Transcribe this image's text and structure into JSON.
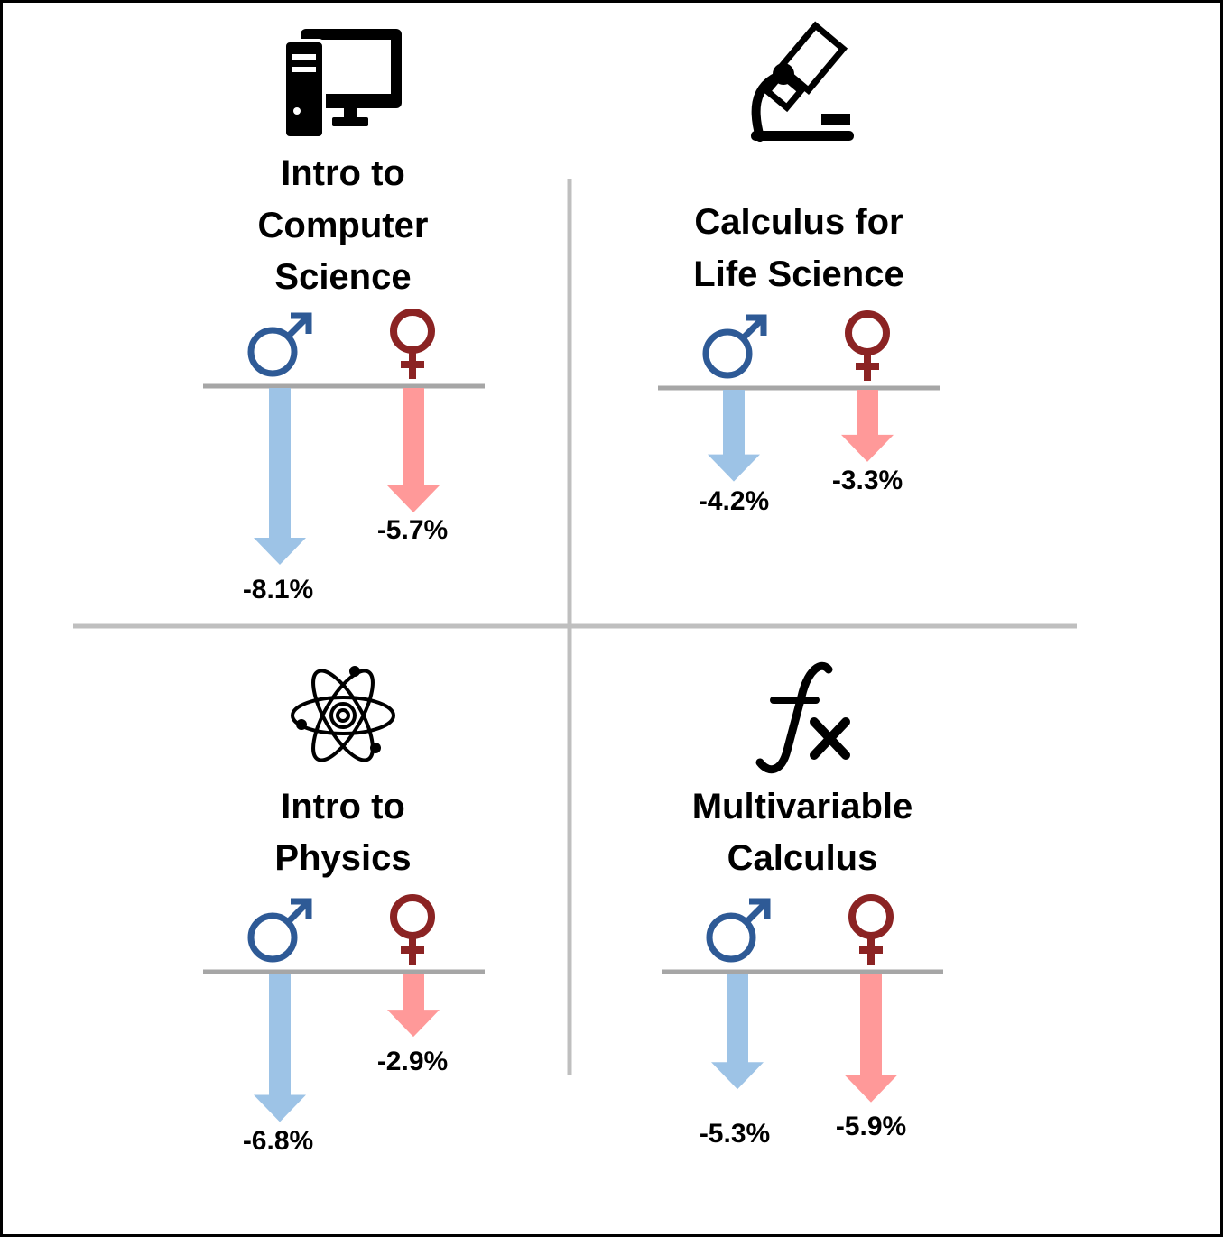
{
  "chart_data": {
    "type": "bar",
    "orientation": "downward-arrows",
    "series": [
      {
        "symbol": "male-symbol",
        "color": "#9dc3e6",
        "symbol_color": "#2e5a96"
      },
      {
        "symbol": "female-symbol",
        "color": "#ff9999",
        "symbol_color": "#8b2323"
      }
    ],
    "panels": [
      {
        "id": "intro-cs",
        "icon": "computer-icon",
        "title_lines": [
          "Intro to",
          "Computer",
          "Science"
        ],
        "values": [
          -8.1,
          -5.7
        ],
        "labels": [
          "-8.1%",
          "-5.7%"
        ]
      },
      {
        "id": "calc-life",
        "icon": "microscope-icon",
        "title_lines": [
          "Calculus for",
          "Life Science"
        ],
        "values": [
          -4.2,
          -3.3
        ],
        "labels": [
          "-4.2%",
          "-3.3%"
        ]
      },
      {
        "id": "intro-physics",
        "icon": "atom-icon",
        "title_lines": [
          "Intro to",
          "Physics"
        ],
        "values": [
          -6.8,
          -2.9
        ],
        "labels": [
          "-6.8%",
          "-2.9%"
        ]
      },
      {
        "id": "multivar-calc",
        "icon": "function-icon",
        "title_lines": [
          "Multivariable",
          "Calculus"
        ],
        "values": [
          -5.3,
          -5.9
        ],
        "labels": [
          "-5.3%",
          "-5.9%"
        ]
      }
    ],
    "colors": {
      "border": "#000000",
      "divider": "#bfbfbf",
      "baseline": "#a6a6a6",
      "icon": "#000000"
    }
  }
}
